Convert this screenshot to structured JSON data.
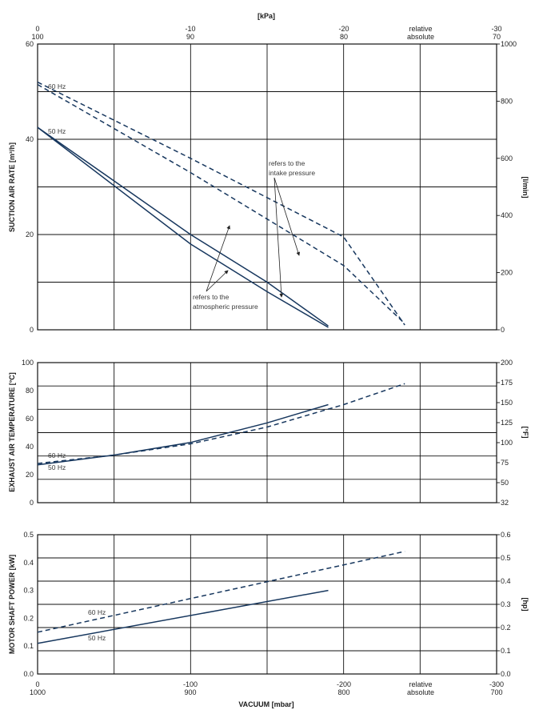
{
  "colors": {
    "line": "#17375e",
    "grid": "#111111",
    "text": "#222222"
  },
  "top_axis": {
    "title": "[kPa]",
    "relative_ticks": [
      "0",
      "-10",
      "-20",
      "-30"
    ],
    "absolute_ticks": [
      "100",
      "90",
      "80",
      "70"
    ],
    "relative_label": "relative",
    "absolute_label": "absolute"
  },
  "bottom_axis": {
    "title": "VACUUM [mbar]",
    "relative_ticks": [
      "0",
      "-100",
      "-200",
      "-300"
    ],
    "absolute_ticks": [
      "1000",
      "900",
      "800",
      "700"
    ],
    "relative_label": "relative",
    "absolute_label": "absolute"
  },
  "chart_data": [
    {
      "type": "line",
      "ylabel": "SUCTION AIR RATE [m³/h]",
      "y2label": "[l/min]",
      "xlim": [
        0,
        300
      ],
      "ylim": [
        0,
        60
      ],
      "y_ticks": [
        0,
        20,
        40,
        60
      ],
      "y2_ticks": [
        "0",
        "200",
        "400",
        "600",
        "800",
        "1000"
      ],
      "grid": true,
      "series": [
        {
          "name": "60 Hz",
          "style": "dashed",
          "x": [
            0,
            100,
            200,
            240
          ],
          "y": [
            52,
            36,
            19.5,
            1
          ]
        },
        {
          "name": "60 Hz",
          "style": "dashed",
          "x": [
            0,
            100,
            200,
            240
          ],
          "y": [
            51.5,
            33,
            13.5,
            1.3
          ]
        },
        {
          "name": "50 Hz",
          "style": "solid",
          "x": [
            0,
            100,
            150,
            190
          ],
          "y": [
            42.5,
            20,
            10,
            0.8
          ]
        },
        {
          "name": "50 Hz",
          "style": "solid",
          "x": [
            0,
            100,
            150,
            190
          ],
          "y": [
            42.5,
            18,
            8,
            0.5
          ]
        }
      ],
      "annotations": [
        {
          "text": [
            "refers to the",
            "intake pressure"
          ]
        },
        {
          "text": [
            "refers to the",
            "atmospheric pressure"
          ]
        }
      ]
    },
    {
      "type": "line",
      "ylabel": "EXHAUST AIR TEMPERATURE [°C]",
      "y2label": "[°F]",
      "xlim": [
        0,
        300
      ],
      "ylim": [
        0,
        100
      ],
      "y_ticks": [
        0,
        20,
        40,
        60,
        80,
        100
      ],
      "y2_ticks": [
        "32",
        "50",
        "75",
        "100",
        "125",
        "150",
        "175",
        "200"
      ],
      "grid": true,
      "series": [
        {
          "name": "60 Hz",
          "style": "dashed",
          "x": [
            0,
            50,
            100,
            150,
            200,
            240
          ],
          "y": [
            28,
            34,
            42,
            54,
            70,
            85
          ]
        },
        {
          "name": "50 Hz",
          "style": "solid",
          "x": [
            0,
            50,
            100,
            150,
            190
          ],
          "y": [
            27,
            34,
            43,
            57,
            70
          ]
        }
      ]
    },
    {
      "type": "line",
      "ylabel": "MOTOR SHAFT POWER [kW]",
      "y2label": "[hp]",
      "xlim": [
        0,
        300
      ],
      "ylim": [
        0,
        0.5
      ],
      "y_ticks": [
        "0.0",
        "0.1",
        "0.2",
        "0.3",
        "0.4",
        "0.5"
      ],
      "y2_ticks": [
        "0.0",
        "0.1",
        "0.2",
        "0.3",
        "0.4",
        "0.5",
        "0.6"
      ],
      "grid": true,
      "series": [
        {
          "name": "60 Hz",
          "style": "dashed",
          "x": [
            0,
            240
          ],
          "y": [
            0.15,
            0.44
          ]
        },
        {
          "name": "50 Hz",
          "style": "solid",
          "x": [
            0,
            190
          ],
          "y": [
            0.11,
            0.3
          ]
        }
      ]
    }
  ]
}
